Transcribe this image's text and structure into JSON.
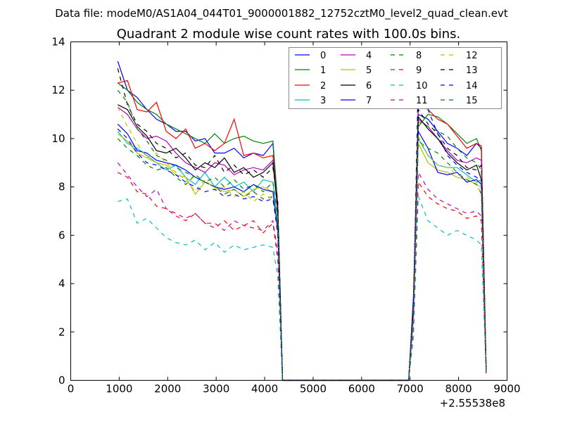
{
  "chart_data": {
    "type": "line",
    "suptitle": "Data file: modeM0/AS1A04_044T01_9000001882_12752cztM0_level2_quad_clean.evt",
    "title": "Quadrant 2 module wise count rates with 100.0s bins.",
    "xlabel": "",
    "ylabel": "",
    "x_offset_label": "+2.55538e8",
    "xlim": [
      0,
      9000
    ],
    "ylim": [
      0,
      14
    ],
    "xticks": [
      0,
      1000,
      2000,
      3000,
      4000,
      5000,
      6000,
      7000,
      8000,
      9000
    ],
    "yticks": [
      0,
      2,
      4,
      6,
      8,
      10,
      12,
      14
    ],
    "grid": false,
    "legend_placement": "top-right",
    "legend_columns": 4,
    "x": [
      970,
      1170,
      1370,
      1570,
      1770,
      1970,
      2170,
      2370,
      2570,
      2770,
      2970,
      3170,
      3370,
      3570,
      3770,
      3970,
      4170,
      4270,
      4370,
      6970,
      7070,
      7170,
      7370,
      7570,
      7770,
      7970,
      8170,
      8370,
      8470,
      8570
    ],
    "series": [
      {
        "name": "0",
        "color": "#0000ff",
        "style": "solid",
        "values": [
          13.2,
          12.0,
          11.7,
          11.2,
          10.8,
          10.6,
          10.3,
          10.3,
          9.9,
          10.0,
          9.4,
          9.4,
          9.6,
          9.2,
          9.4,
          9.3,
          9.8,
          7.0,
          0,
          0,
          3.5,
          11.0,
          10.8,
          10.3,
          9.8,
          9.6,
          9.3,
          9.8,
          9.6,
          0.3
        ]
      },
      {
        "name": "1",
        "color": "#008000",
        "style": "solid",
        "values": [
          12.3,
          12.0,
          11.5,
          11.2,
          11.0,
          10.6,
          10.4,
          10.2,
          10.0,
          9.8,
          10.2,
          9.8,
          10.0,
          10.1,
          9.9,
          9.8,
          9.9,
          7.3,
          0,
          0,
          3.0,
          10.5,
          11.0,
          10.9,
          10.6,
          10.2,
          9.8,
          10.0,
          9.5,
          0.3
        ]
      },
      {
        "name": "2",
        "color": "#ff0000",
        "style": "solid",
        "values": [
          12.3,
          12.4,
          11.2,
          11.1,
          11.5,
          10.3,
          10.0,
          10.4,
          9.6,
          9.8,
          9.5,
          9.8,
          10.8,
          9.3,
          9.4,
          9.2,
          9.3,
          7.0,
          0,
          0,
          3.2,
          11.5,
          11.2,
          10.8,
          10.6,
          10.1,
          9.6,
          9.8,
          9.7,
          0.3
        ]
      },
      {
        "name": "3",
        "color": "#00bfbf",
        "style": "solid",
        "values": [
          10.3,
          9.8,
          9.6,
          9.3,
          9.0,
          8.7,
          8.9,
          8.4,
          8.1,
          8.6,
          8.0,
          8.4,
          8.0,
          8.2,
          7.8,
          8.3,
          8.2,
          6.5,
          0,
          0,
          2.8,
          10.0,
          9.3,
          8.9,
          8.8,
          8.8,
          8.5,
          8.2,
          8.3,
          0.3
        ]
      },
      {
        "name": "4",
        "color": "#bf00bf",
        "style": "solid",
        "values": [
          11.3,
          11.0,
          10.4,
          10.0,
          10.1,
          9.9,
          9.4,
          9.0,
          8.8,
          8.6,
          9.0,
          8.9,
          8.5,
          8.7,
          8.8,
          8.7,
          9.1,
          7.2,
          0,
          0,
          2.9,
          10.8,
          10.5,
          10.0,
          9.5,
          9.1,
          9.0,
          9.2,
          9.1,
          0.3
        ]
      },
      {
        "name": "5",
        "color": "#bfbf00",
        "style": "solid",
        "values": [
          10.2,
          9.9,
          9.4,
          9.2,
          9.0,
          8.9,
          8.5,
          8.4,
          7.7,
          8.2,
          8.0,
          7.8,
          7.9,
          7.6,
          7.9,
          8.0,
          7.8,
          6.3,
          0,
          0,
          2.6,
          9.8,
          9.0,
          8.7,
          8.6,
          8.4,
          8.3,
          8.1,
          8.0,
          0.3
        ]
      },
      {
        "name": "6",
        "color": "#000000",
        "style": "solid",
        "values": [
          11.4,
          11.2,
          10.5,
          10.1,
          9.5,
          9.4,
          9.6,
          9.2,
          8.7,
          9.0,
          8.8,
          9.2,
          8.6,
          8.8,
          8.4,
          8.6,
          9.0,
          7.0,
          0,
          0,
          3.0,
          10.9,
          10.4,
          10.0,
          9.4,
          9.0,
          8.7,
          8.9,
          8.3,
          0.3
        ]
      },
      {
        "name": "7",
        "color": "#0000ff",
        "style": "solid",
        "values": [
          10.6,
          10.2,
          9.5,
          9.4,
          9.1,
          9.0,
          8.9,
          8.7,
          8.4,
          8.2,
          8.0,
          7.9,
          8.0,
          7.8,
          8.1,
          7.9,
          7.8,
          6.2,
          0,
          0,
          2.8,
          10.3,
          9.6,
          8.6,
          8.5,
          8.6,
          8.2,
          8.3,
          8.1,
          0.3
        ]
      },
      {
        "name": "8",
        "color": "#008000",
        "style": "dashed",
        "values": [
          10.0,
          9.6,
          9.3,
          8.9,
          8.7,
          8.8,
          8.4,
          8.1,
          8.5,
          8.2,
          8.0,
          7.7,
          7.9,
          7.6,
          7.8,
          7.5,
          7.6,
          6.0,
          0,
          0,
          2.5,
          9.9,
          9.6,
          9.4,
          9.0,
          8.6,
          8.3,
          8.1,
          7.7,
          0.3
        ]
      },
      {
        "name": "9",
        "color": "#ff0000",
        "style": "dashed",
        "values": [
          8.6,
          8.4,
          7.8,
          7.7,
          7.2,
          7.1,
          6.8,
          6.6,
          6.9,
          6.5,
          6.3,
          6.6,
          6.2,
          6.4,
          6.6,
          6.1,
          6.5,
          5.0,
          0,
          0,
          2.2,
          8.2,
          7.6,
          7.3,
          7.1,
          7.0,
          6.7,
          6.8,
          6.6,
          0.3
        ]
      },
      {
        "name": "10",
        "color": "#00bfbf",
        "style": "dashed",
        "values": [
          7.4,
          7.5,
          6.5,
          6.7,
          6.3,
          5.9,
          5.7,
          5.6,
          5.8,
          5.4,
          5.7,
          5.3,
          5.6,
          5.4,
          5.5,
          5.6,
          5.5,
          4.3,
          0,
          0,
          1.8,
          7.6,
          6.6,
          6.3,
          6.0,
          6.2,
          6.0,
          5.8,
          5.6,
          0.3
        ]
      },
      {
        "name": "11",
        "color": "#bf00bf",
        "style": "dashed",
        "values": [
          9.0,
          8.5,
          8.0,
          7.6,
          7.9,
          7.1,
          6.9,
          6.7,
          6.9,
          6.5,
          6.5,
          6.2,
          6.6,
          6.4,
          6.3,
          6.2,
          6.6,
          5.3,
          0,
          0,
          2.3,
          8.6,
          7.9,
          7.5,
          7.3,
          7.1,
          6.9,
          7.0,
          6.8,
          0.3
        ]
      },
      {
        "name": "12",
        "color": "#bfbf00",
        "style": "dashed",
        "values": [
          11.3,
          10.5,
          9.8,
          9.2,
          9.4,
          9.0,
          8.6,
          8.3,
          7.8,
          8.3,
          7.9,
          8.0,
          7.6,
          7.8,
          7.4,
          7.7,
          7.5,
          6.1,
          0,
          0,
          2.7,
          10.1,
          9.3,
          8.9,
          8.8,
          8.5,
          8.4,
          8.2,
          7.6,
          0.3
        ]
      },
      {
        "name": "13",
        "color": "#000000",
        "style": "dashed",
        "values": [
          12.9,
          11.4,
          10.6,
          10.3,
          9.8,
          9.6,
          9.2,
          9.4,
          8.9,
          8.8,
          9.3,
          8.6,
          8.9,
          8.5,
          8.7,
          8.4,
          8.8,
          7.4,
          0,
          0,
          3.1,
          11.2,
          10.6,
          10.2,
          9.6,
          9.3,
          8.8,
          8.7,
          8.9,
          0.3
        ]
      },
      {
        "name": "14",
        "color": "#0000ff",
        "style": "dashed",
        "values": [
          10.4,
          10.0,
          9.4,
          9.0,
          8.9,
          8.7,
          8.5,
          8.2,
          8.0,
          7.8,
          7.9,
          7.6,
          7.7,
          7.5,
          7.6,
          7.4,
          7.5,
          6.1,
          0,
          0,
          3.0,
          12.7,
          11.2,
          10.2,
          9.3,
          8.9,
          8.6,
          8.4,
          8.2,
          0.3
        ]
      },
      {
        "name": "15",
        "color": "#008000",
        "style": "dashed",
        "values": [
          12.0,
          11.5,
          10.4,
          9.9,
          9.3,
          9.1,
          8.8,
          8.6,
          8.4,
          8.2,
          8.4,
          8.0,
          8.3,
          7.9,
          8.1,
          7.8,
          8.2,
          6.8,
          0,
          0,
          2.9,
          10.7,
          10.5,
          10.3,
          10.1,
          9.6,
          9.2,
          9.0,
          8.7,
          0.3
        ]
      }
    ]
  }
}
